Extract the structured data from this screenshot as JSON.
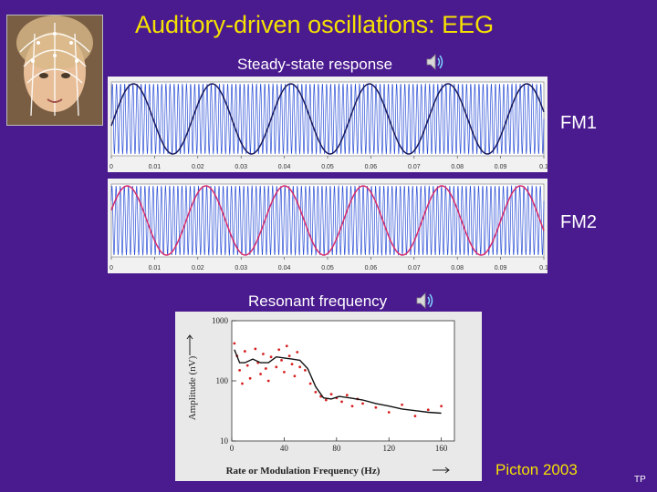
{
  "slide": {
    "title": "Auditory-driven oscillations: EEG",
    "subtitle": "Steady-state response",
    "section2_label": "Resonant frequency",
    "credit": "Picton 2003",
    "footer": "TP"
  },
  "wave_panels": [
    {
      "label": "FM1",
      "ticks": [
        "0",
        "0.01",
        "0.02",
        "0.03",
        "0.04",
        "0.05",
        "0.06",
        "0.07",
        "0.08",
        "0.09",
        "0.1"
      ],
      "carrier_color": "#2b4fd6",
      "envelope_color": "#1a1a5e"
    },
    {
      "label": "FM2",
      "ticks": [
        "0",
        "0.01",
        "0.02",
        "0.03",
        "0.04",
        "0.05",
        "0.06",
        "0.07",
        "0.08",
        "0.09",
        "0.1"
      ],
      "carrier_color": "#2b4fd6",
      "envelope_color": "#d62b6b"
    }
  ],
  "icons": {
    "speaker": "speaker-icon"
  },
  "chart_data": {
    "type": "scatter",
    "xlabel": "Rate or Modulation Frequency (Hz)",
    "ylabel": "Amplitude (nV)",
    "xlim": [
      0,
      170
    ],
    "ylim": [
      10,
      1000
    ],
    "yscale": "log",
    "x_ticks": [
      "0",
      "40",
      "80",
      "120",
      "160"
    ],
    "y_ticks": [
      "1000",
      "100",
      "10"
    ],
    "series": [
      {
        "kind": "points",
        "color": "#d62020",
        "x": [
          2,
          4,
          6,
          8,
          10,
          12,
          14,
          18,
          20,
          22,
          24,
          26,
          28,
          30,
          34,
          36,
          38,
          40,
          42,
          44,
          46,
          48,
          50,
          52,
          56,
          60,
          64,
          68,
          72,
          76,
          80,
          84,
          88,
          92,
          96,
          100,
          110,
          120,
          130,
          140,
          150,
          160
        ],
        "y": [
          420,
          260,
          150,
          90,
          310,
          180,
          110,
          340,
          200,
          130,
          280,
          160,
          100,
          250,
          170,
          330,
          220,
          140,
          380,
          260,
          190,
          120,
          300,
          170,
          150,
          90,
          65,
          55,
          48,
          60,
          52,
          45,
          58,
          38,
          50,
          42,
          36,
          30,
          40,
          26,
          33,
          38
        ]
      },
      {
        "kind": "line",
        "color": "#111111",
        "x": [
          2,
          6,
          10,
          16,
          22,
          28,
          34,
          40,
          46,
          52,
          58,
          64,
          70,
          76,
          82,
          90,
          100,
          110,
          120,
          130,
          140,
          150,
          160
        ],
        "y": [
          330,
          200,
          200,
          230,
          200,
          200,
          250,
          240,
          230,
          220,
          160,
          80,
          52,
          50,
          55,
          52,
          48,
          42,
          38,
          34,
          32,
          30,
          29
        ]
      }
    ]
  }
}
